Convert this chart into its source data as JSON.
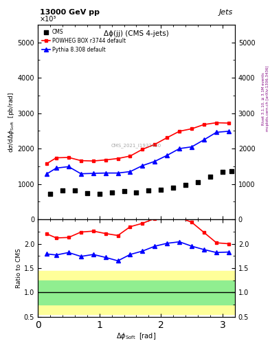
{
  "title_top": "13000 GeV pp",
  "title_right": "Jets",
  "plot_title": "Δϕ(jj) (CMS 4-jets)",
  "xlabel": "Δϕ_  Soft  [rad]",
  "ylabel_main": "dσ/dΔϕ_rm Soft  [pb/rad]",
  "ylabel_ratio": "Ratio to CMS",
  "watermark": "CMS_2021_I1932460",
  "right_label": "Rivet 3.1.10, ≥ 3.1M events",
  "right_label2": "mcplots.cern.ch [arXiv:1306.3436]",
  "cms_x": [
    0.2,
    0.4,
    0.6,
    0.8,
    1.0,
    1.2,
    1.4,
    1.6,
    1.8,
    2.0,
    2.2,
    2.4,
    2.6,
    2.8,
    3.0,
    3.14
  ],
  "cms_y": [
    720,
    820,
    820,
    740,
    730,
    760,
    790,
    760,
    820,
    840,
    900,
    980,
    1050,
    1200,
    1350,
    1360
  ],
  "powheg_x": [
    0.15,
    0.3,
    0.5,
    0.7,
    0.9,
    1.1,
    1.3,
    1.5,
    1.7,
    1.9,
    2.1,
    2.3,
    2.5,
    2.7,
    2.9,
    3.1
  ],
  "powheg_y": [
    1580,
    1740,
    1750,
    1660,
    1650,
    1680,
    1720,
    1790,
    1980,
    2120,
    2310,
    2490,
    2560,
    2680,
    2730,
    2720
  ],
  "pythia_x": [
    0.15,
    0.3,
    0.5,
    0.7,
    0.9,
    1.1,
    1.3,
    1.5,
    1.7,
    1.9,
    2.1,
    2.3,
    2.5,
    2.7,
    2.9,
    3.1
  ],
  "pythia_y": [
    1290,
    1450,
    1490,
    1290,
    1300,
    1310,
    1310,
    1350,
    1520,
    1640,
    1810,
    2000,
    2050,
    2250,
    2460,
    2490
  ],
  "powheg_ratio": [
    2.2,
    2.12,
    2.13,
    2.24,
    2.26,
    2.21,
    2.17,
    2.35,
    2.42,
    2.52,
    2.57,
    2.54,
    2.44,
    2.23,
    2.02,
    2.0
  ],
  "pythia_ratio": [
    1.79,
    1.77,
    1.82,
    1.74,
    1.78,
    1.72,
    1.65,
    1.78,
    1.85,
    1.95,
    2.01,
    2.04,
    1.95,
    1.88,
    1.82,
    1.83
  ],
  "green_band_upper": 1.25,
  "green_band_lower": 0.75,
  "yellow_band_upper": 1.45,
  "yellow_band_lower": 0.55,
  "xlim": [
    0,
    3.2
  ],
  "ylim_main": [
    0,
    5500
  ],
  "ylim_ratio": [
    0.5,
    2.5
  ],
  "yticks_main": [
    0,
    1000,
    2000,
    3000,
    4000,
    5000
  ],
  "yticks_ratio": [
    0.5,
    1.0,
    1.5,
    2.0
  ],
  "cms_color": "#000000",
  "powheg_color": "#ff0000",
  "pythia_color": "#0000ff",
  "green_color": "#90ee90",
  "yellow_color": "#ffff99",
  "scale_label": "×10³"
}
